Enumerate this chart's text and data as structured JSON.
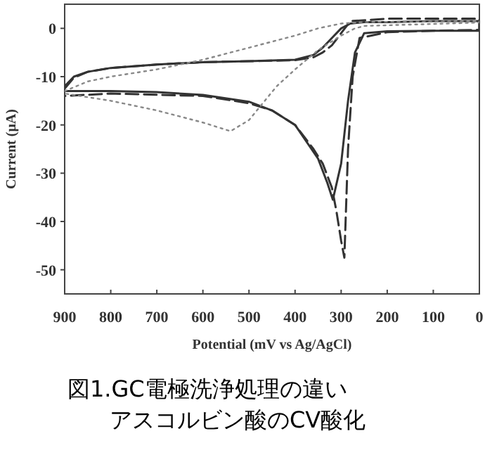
{
  "chart_data": {
    "type": "line",
    "xlabel": "Potential (mV vs Ag/AgCl)",
    "ylabel": "Current (μA)",
    "annotations": [
      "図1.GC電極洗浄処理の違い",
      "アスコルビン酸のCV酸化"
    ],
    "xlim": [
      900,
      0
    ],
    "xticks": [
      900,
      800,
      700,
      600,
      500,
      400,
      300,
      200,
      100,
      0
    ],
    "ylim": [
      -55,
      5
    ],
    "yticks": [
      0,
      -10,
      -20,
      -30,
      -40,
      -50
    ],
    "grid": false,
    "series": [
      {
        "color": "#333333",
        "line_style": "solid",
        "x": [
          900,
          880,
          850,
          800,
          700,
          600,
          500,
          400,
          360,
          340,
          320,
          300,
          280,
          250,
          200,
          100,
          0,
          0,
          100,
          200,
          250,
          270,
          285,
          300,
          318,
          330,
          350,
          400,
          450,
          500,
          600,
          700,
          800,
          900
        ],
        "values": [
          -12,
          -10,
          -9,
          -8.2,
          -7.5,
          -7,
          -6.8,
          -6.5,
          -5.5,
          -4,
          -2,
          0,
          1,
          1.3,
          1.3,
          1.5,
          1.5,
          -0.5,
          -0.5,
          -0.6,
          -1,
          -5,
          -15,
          -28,
          -35.5,
          -32,
          -27,
          -20,
          -17,
          -15.2,
          -13.8,
          -13.2,
          -13,
          -13
        ]
      },
      {
        "color": "#333333",
        "line_style": "dashed",
        "x": [
          900,
          880,
          850,
          800,
          700,
          600,
          500,
          400,
          360,
          340,
          320,
          300,
          280,
          200,
          100,
          0,
          0,
          100,
          200,
          260,
          275,
          285,
          293,
          300,
          310,
          320,
          340,
          360,
          400,
          450,
          500,
          600,
          800,
          900
        ],
        "values": [
          -12.5,
          -10.2,
          -9,
          -8.2,
          -7.5,
          -7,
          -6.8,
          -6.6,
          -6,
          -5,
          -3.5,
          -1,
          1.5,
          2,
          2,
          2,
          -0.3,
          -0.5,
          -0.8,
          -2,
          -10,
          -25,
          -47.5,
          -44,
          -38,
          -33,
          -28,
          -25,
          -20,
          -17,
          -15.5,
          -14,
          -13.5,
          -14
        ]
      },
      {
        "color": "#888888",
        "line_style": "dotted",
        "x": [
          900,
          850,
          800,
          700,
          600,
          500,
          400,
          350,
          300,
          250,
          0,
          0,
          250,
          270,
          300,
          350,
          400,
          440,
          500,
          540,
          600,
          700,
          800,
          900
        ],
        "values": [
          -13,
          -11,
          -10,
          -8.5,
          -6.5,
          -4,
          -1.5,
          0,
          1,
          1.3,
          1.5,
          1.2,
          0.5,
          0,
          -1.5,
          -4.5,
          -8.5,
          -12,
          -19,
          -21.3,
          -19.5,
          -17,
          -15,
          -13.5
        ]
      }
    ]
  }
}
